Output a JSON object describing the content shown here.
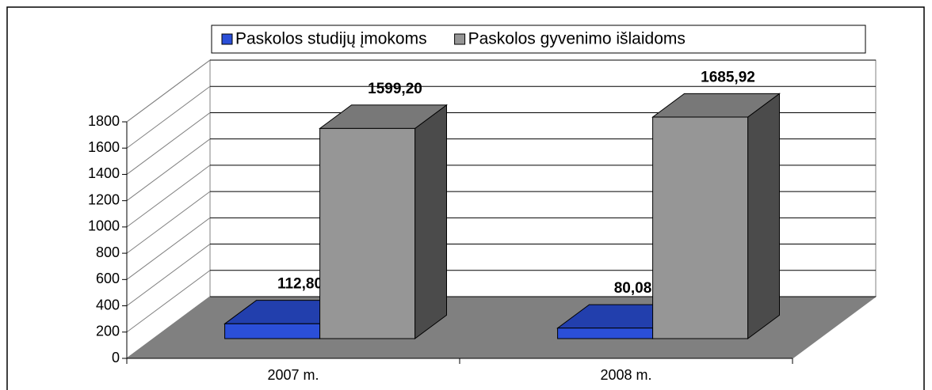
{
  "chart_data": {
    "type": "bar3d",
    "categories": [
      "2007 m.",
      "2008 m."
    ],
    "series": [
      {
        "name": "Paskolos studijų įmokoms",
        "color": "#2b4fd8",
        "values": [
          112.8,
          80.08
        ],
        "value_labels": [
          "112,80",
          "80,08"
        ]
      },
      {
        "name": "Paskolos gyvenimo išlaidoms",
        "color": "#969696",
        "values": [
          1599.2,
          1685.92
        ],
        "value_labels": [
          "1599,20",
          "1685,92"
        ]
      }
    ],
    "ylim": [
      0,
      1800
    ],
    "yticks": [
      0,
      200,
      400,
      600,
      800,
      1000,
      1200,
      1400,
      1600,
      1800
    ],
    "grid": true,
    "legend": "top"
  }
}
